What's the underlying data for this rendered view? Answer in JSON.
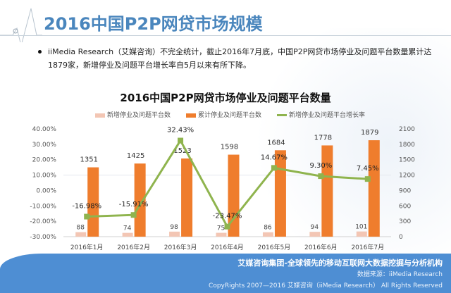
{
  "slide": {
    "title": "2016中国P2P网贷市场规模",
    "bullet": "iiMedia Research（艾媒咨询）不完全统计，截止2016年7月底，中国P2P网贷市场停业及问题平台数量累计达1879家，新增停业及问题平台增长率自5月以来有所下降。"
  },
  "footer": {
    "tagline": "艾媒咨询集团-全球领先的移动互联网大数据挖掘与分析机构",
    "source": "数据来源：iiMedia Research",
    "copyright": "CopyRights 2007—2016 艾媒咨询（iiMedia Research） All Rights Reserved"
  },
  "chart_data": {
    "type": "bar",
    "title": "2016中国P2P网贷市场停业及问题平台数量",
    "categories": [
      "2016年1月",
      "2016年2月",
      "2016年3月",
      "2016年4月",
      "2016年5月",
      "2016年6月",
      "2016年7月"
    ],
    "series": [
      {
        "name": "新增停业及问题平台数",
        "type": "bar",
        "axis": "right",
        "color": "#f3c6b4",
        "values": [
          88,
          74,
          98,
          75,
          86,
          94,
          101
        ]
      },
      {
        "name": "累计停业及问题平台数",
        "type": "bar",
        "axis": "right",
        "color": "#ef7d2d",
        "values": [
          1351,
          1425,
          1523,
          1598,
          1684,
          1778,
          1879
        ]
      },
      {
        "name": "新增停业及问题平台增长率",
        "type": "line",
        "axis": "left",
        "color": "#8fb44e",
        "values": [
          -16.98,
          -15.91,
          32.43,
          -23.47,
          14.67,
          9.3,
          7.45
        ],
        "labels": [
          "-16.98%",
          "-15.91%",
          "32.43%",
          "-23.47%",
          "14.67%",
          "9.30%",
          "7.45%"
        ]
      }
    ],
    "left_axis": {
      "ylim": [
        -30,
        40
      ],
      "ticks": [
        "40.00%",
        "30.00%",
        "20.00%",
        "10.00%",
        "0.00%",
        "-10.00%",
        "-20.00%",
        "-30.00%"
      ]
    },
    "right_axis": {
      "ylim": [
        0,
        2100
      ],
      "ticks": [
        "2100",
        "1800",
        "1500",
        "1200",
        "900",
        "600",
        "300",
        "0"
      ]
    },
    "legend": "top",
    "grid": false
  }
}
